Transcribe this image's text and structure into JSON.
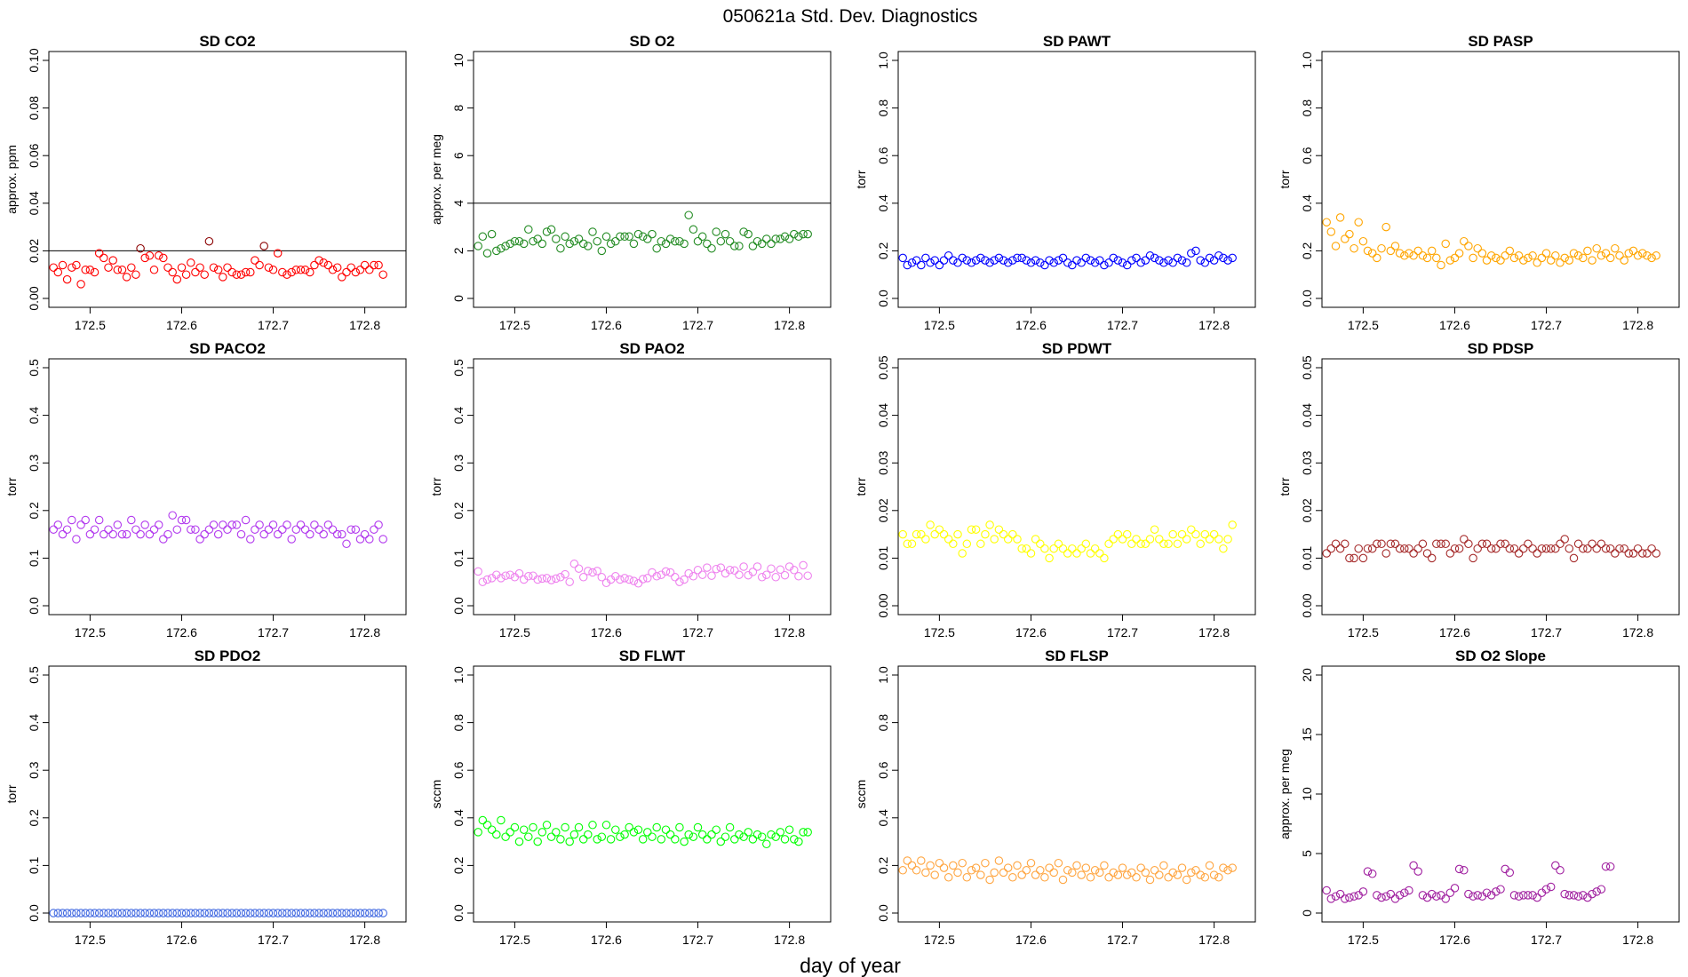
{
  "figure": {
    "title": "050621a   Std. Dev. Diagnostics",
    "xlabel": "day of year"
  },
  "chart_data": [
    {
      "id": "co2",
      "type": "scatter",
      "title": "SD CO2",
      "ylabel": "approx. ppm",
      "xlabel": "",
      "xlim": [
        172.455,
        172.845
      ],
      "ylim": [
        0,
        0.1
      ],
      "yticks": [
        "0.00",
        "0.02",
        "0.04",
        "0.06",
        "0.08",
        "0.10"
      ],
      "xticks": [
        "172.5",
        "172.6",
        "172.7",
        "172.8"
      ],
      "threshold": 0.02,
      "color": "#ff0000",
      "outlier_color": "#8b0000",
      "x_start": 172.46,
      "x_step": 0.005,
      "values": [
        0.013,
        0.011,
        0.014,
        0.008,
        0.013,
        0.014,
        0.006,
        0.012,
        0.012,
        0.011,
        0.019,
        0.017,
        0.013,
        0.016,
        0.012,
        0.012,
        0.009,
        0.013,
        0.01,
        0.021,
        0.017,
        0.018,
        0.012,
        0.018,
        0.017,
        0.013,
        0.011,
        0.008,
        0.013,
        0.01,
        0.015,
        0.011,
        0.013,
        0.01,
        0.024,
        0.013,
        0.012,
        0.009,
        0.013,
        0.011,
        0.01,
        0.01,
        0.011,
        0.011,
        0.016,
        0.014,
        0.022,
        0.013,
        0.012,
        0.019,
        0.011,
        0.01,
        0.011,
        0.012,
        0.012,
        0.012,
        0.011,
        0.014,
        0.016,
        0.015,
        0.014,
        0.012,
        0.013,
        0.009,
        0.011,
        0.013,
        0.011,
        0.012,
        0.014,
        0.012,
        0.014,
        0.014,
        0.01
      ]
    },
    {
      "id": "o2",
      "type": "scatter",
      "title": "SD O2",
      "ylabel": "approx. per meg",
      "xlabel": "",
      "xlim": [
        172.455,
        172.845
      ],
      "ylim": [
        0,
        10
      ],
      "yticks": [
        "0",
        "2",
        "4",
        "6",
        "8",
        "10"
      ],
      "xticks": [
        "172.5",
        "172.6",
        "172.7",
        "172.8"
      ],
      "threshold": 4,
      "color": "#228b22",
      "x_start": 172.46,
      "x_step": 0.005,
      "values": [
        2.2,
        2.6,
        1.9,
        2.7,
        2.0,
        2.1,
        2.2,
        2.3,
        2.4,
        2.4,
        2.3,
        2.9,
        2.4,
        2.5,
        2.3,
        2.8,
        2.9,
        2.5,
        2.1,
        2.6,
        2.3,
        2.4,
        2.5,
        2.3,
        2.2,
        2.8,
        2.4,
        2.0,
        2.6,
        2.3,
        2.4,
        2.6,
        2.6,
        2.6,
        2.3,
        2.7,
        2.6,
        2.5,
        2.7,
        2.1,
        2.4,
        2.3,
        2.5,
        2.4,
        2.4,
        2.3,
        3.5,
        2.9,
        2.4,
        2.6,
        2.3,
        2.1,
        2.8,
        2.4,
        2.7,
        2.4,
        2.2,
        2.2,
        2.8,
        2.7,
        2.2,
        2.4,
        2.3,
        2.5,
        2.3,
        2.5,
        2.5,
        2.6,
        2.5,
        2.7,
        2.6,
        2.7,
        2.7
      ]
    },
    {
      "id": "pawt",
      "type": "scatter",
      "title": "SD PAWT",
      "ylabel": "torr",
      "xlabel": "",
      "xlim": [
        172.455,
        172.845
      ],
      "ylim": [
        0,
        1
      ],
      "yticks": [
        "0.0",
        "0.2",
        "0.4",
        "0.6",
        "0.8",
        "1.0"
      ],
      "xticks": [
        "172.5",
        "172.6",
        "172.7",
        "172.8"
      ],
      "color": "#0000ff",
      "x_start": 172.46,
      "x_step": 0.005,
      "values": [
        0.17,
        0.14,
        0.15,
        0.16,
        0.14,
        0.17,
        0.15,
        0.16,
        0.14,
        0.16,
        0.18,
        0.16,
        0.15,
        0.17,
        0.16,
        0.15,
        0.16,
        0.17,
        0.16,
        0.15,
        0.16,
        0.17,
        0.16,
        0.15,
        0.16,
        0.17,
        0.17,
        0.16,
        0.15,
        0.16,
        0.15,
        0.14,
        0.16,
        0.15,
        0.16,
        0.17,
        0.15,
        0.14,
        0.16,
        0.15,
        0.17,
        0.16,
        0.15,
        0.16,
        0.14,
        0.15,
        0.17,
        0.16,
        0.15,
        0.14,
        0.16,
        0.17,
        0.15,
        0.16,
        0.18,
        0.17,
        0.16,
        0.15,
        0.16,
        0.15,
        0.17,
        0.16,
        0.15,
        0.19,
        0.2,
        0.16,
        0.15,
        0.17,
        0.16,
        0.18,
        0.17,
        0.16,
        0.17
      ]
    },
    {
      "id": "pasp",
      "type": "scatter",
      "title": "SD PASP",
      "ylabel": "torr",
      "xlabel": "",
      "xlim": [
        172.455,
        172.845
      ],
      "ylim": [
        0,
        1
      ],
      "yticks": [
        "0.0",
        "0.2",
        "0.4",
        "0.6",
        "0.8",
        "1.0"
      ],
      "xticks": [
        "172.5",
        "172.6",
        "172.7",
        "172.8"
      ],
      "color": "#ffa500",
      "x_start": 172.46,
      "x_step": 0.005,
      "values": [
        0.32,
        0.28,
        0.22,
        0.34,
        0.25,
        0.27,
        0.21,
        0.32,
        0.24,
        0.2,
        0.19,
        0.17,
        0.21,
        0.3,
        0.2,
        0.22,
        0.19,
        0.18,
        0.19,
        0.18,
        0.2,
        0.18,
        0.17,
        0.2,
        0.17,
        0.14,
        0.23,
        0.16,
        0.17,
        0.19,
        0.24,
        0.22,
        0.17,
        0.21,
        0.19,
        0.16,
        0.18,
        0.17,
        0.16,
        0.18,
        0.2,
        0.17,
        0.18,
        0.16,
        0.17,
        0.18,
        0.15,
        0.17,
        0.19,
        0.16,
        0.18,
        0.15,
        0.17,
        0.16,
        0.19,
        0.18,
        0.17,
        0.2,
        0.16,
        0.21,
        0.18,
        0.19,
        0.17,
        0.21,
        0.18,
        0.16,
        0.19,
        0.2,
        0.18,
        0.19,
        0.18,
        0.17,
        0.18
      ]
    },
    {
      "id": "paco2",
      "type": "scatter",
      "title": "SD PACO2",
      "ylabel": "torr",
      "xlabel": "",
      "xlim": [
        172.455,
        172.845
      ],
      "ylim": [
        0,
        0.5
      ],
      "yticks": [
        "0.0",
        "0.1",
        "0.2",
        "0.3",
        "0.4",
        "0.5"
      ],
      "xticks": [
        "172.5",
        "172.6",
        "172.7",
        "172.8"
      ],
      "color": "#b23aee",
      "x_start": 172.46,
      "x_step": 0.005,
      "values": [
        0.16,
        0.17,
        0.15,
        0.16,
        0.18,
        0.14,
        0.17,
        0.18,
        0.15,
        0.16,
        0.18,
        0.15,
        0.16,
        0.15,
        0.17,
        0.15,
        0.15,
        0.18,
        0.16,
        0.15,
        0.17,
        0.15,
        0.16,
        0.17,
        0.14,
        0.15,
        0.19,
        0.16,
        0.18,
        0.18,
        0.16,
        0.16,
        0.14,
        0.15,
        0.16,
        0.17,
        0.15,
        0.17,
        0.16,
        0.17,
        0.17,
        0.15,
        0.18,
        0.14,
        0.16,
        0.17,
        0.15,
        0.16,
        0.17,
        0.15,
        0.16,
        0.17,
        0.14,
        0.16,
        0.17,
        0.16,
        0.15,
        0.17,
        0.16,
        0.15,
        0.17,
        0.16,
        0.15,
        0.15,
        0.13,
        0.16,
        0.16,
        0.14,
        0.15,
        0.14,
        0.16,
        0.17,
        0.14
      ]
    },
    {
      "id": "pao2",
      "type": "scatter",
      "title": "SD PAO2",
      "ylabel": "torr",
      "xlabel": "",
      "xlim": [
        172.455,
        172.845
      ],
      "ylim": [
        0,
        0.5
      ],
      "yticks": [
        "0.0",
        "0.1",
        "0.2",
        "0.3",
        "0.4",
        "0.5"
      ],
      "xticks": [
        "172.5",
        "172.6",
        "172.7",
        "172.8"
      ],
      "color": "#ee82ee",
      "x_start": 172.46,
      "x_step": 0.005,
      "values": [
        0.072,
        0.05,
        0.055,
        0.058,
        0.065,
        0.058,
        0.063,
        0.065,
        0.06,
        0.068,
        0.055,
        0.062,
        0.063,
        0.055,
        0.057,
        0.058,
        0.054,
        0.057,
        0.06,
        0.066,
        0.05,
        0.088,
        0.078,
        0.06,
        0.073,
        0.07,
        0.073,
        0.06,
        0.048,
        0.055,
        0.062,
        0.055,
        0.058,
        0.055,
        0.052,
        0.047,
        0.056,
        0.058,
        0.07,
        0.062,
        0.065,
        0.072,
        0.07,
        0.06,
        0.05,
        0.055,
        0.068,
        0.062,
        0.075,
        0.065,
        0.08,
        0.063,
        0.077,
        0.08,
        0.068,
        0.075,
        0.074,
        0.065,
        0.082,
        0.064,
        0.071,
        0.082,
        0.06,
        0.065,
        0.078,
        0.06,
        0.076,
        0.064,
        0.082,
        0.075,
        0.062,
        0.085,
        0.063
      ]
    },
    {
      "id": "pdwt",
      "type": "scatter",
      "title": "SD PDWT",
      "ylabel": "torr",
      "xlabel": "",
      "xlim": [
        172.455,
        172.845
      ],
      "ylim": [
        0,
        0.05
      ],
      "yticks": [
        "0.00",
        "0.01",
        "0.02",
        "0.03",
        "0.04",
        "0.05"
      ],
      "xticks": [
        "172.5",
        "172.6",
        "172.7",
        "172.8"
      ],
      "color": "#ffff00",
      "x_start": 172.46,
      "x_step": 0.005,
      "values": [
        0.015,
        0.013,
        0.013,
        0.015,
        0.015,
        0.014,
        0.017,
        0.015,
        0.016,
        0.015,
        0.014,
        0.013,
        0.015,
        0.011,
        0.013,
        0.016,
        0.016,
        0.013,
        0.015,
        0.017,
        0.014,
        0.016,
        0.015,
        0.014,
        0.015,
        0.014,
        0.012,
        0.012,
        0.011,
        0.014,
        0.013,
        0.012,
        0.01,
        0.012,
        0.013,
        0.012,
        0.011,
        0.012,
        0.011,
        0.012,
        0.013,
        0.011,
        0.012,
        0.011,
        0.01,
        0.013,
        0.014,
        0.015,
        0.014,
        0.015,
        0.013,
        0.014,
        0.013,
        0.013,
        0.014,
        0.016,
        0.014,
        0.013,
        0.013,
        0.015,
        0.013,
        0.015,
        0.014,
        0.016,
        0.015,
        0.013,
        0.015,
        0.014,
        0.015,
        0.014,
        0.012,
        0.014,
        0.017
      ]
    },
    {
      "id": "pdsp",
      "type": "scatter",
      "title": "SD PDSP",
      "ylabel": "torr",
      "xlabel": "",
      "xlim": [
        172.455,
        172.845
      ],
      "ylim": [
        0,
        0.05
      ],
      "yticks": [
        "0.00",
        "0.01",
        "0.02",
        "0.03",
        "0.04",
        "0.05"
      ],
      "xticks": [
        "172.5",
        "172.6",
        "172.7",
        "172.8"
      ],
      "color": "#a52a2a",
      "x_start": 172.46,
      "x_step": 0.005,
      "values": [
        0.011,
        0.012,
        0.013,
        0.012,
        0.013,
        0.01,
        0.01,
        0.012,
        0.01,
        0.012,
        0.012,
        0.013,
        0.013,
        0.011,
        0.013,
        0.013,
        0.012,
        0.012,
        0.012,
        0.011,
        0.012,
        0.013,
        0.011,
        0.01,
        0.013,
        0.013,
        0.013,
        0.011,
        0.012,
        0.012,
        0.014,
        0.013,
        0.01,
        0.012,
        0.013,
        0.013,
        0.012,
        0.012,
        0.013,
        0.013,
        0.012,
        0.012,
        0.011,
        0.012,
        0.013,
        0.012,
        0.011,
        0.012,
        0.012,
        0.012,
        0.012,
        0.013,
        0.014,
        0.012,
        0.01,
        0.013,
        0.012,
        0.012,
        0.013,
        0.012,
        0.013,
        0.012,
        0.012,
        0.011,
        0.012,
        0.012,
        0.011,
        0.011,
        0.012,
        0.011,
        0.011,
        0.012,
        0.011
      ]
    },
    {
      "id": "pdo2",
      "type": "scatter",
      "title": "SD PDO2",
      "ylabel": "torr",
      "xlabel": "",
      "xlim": [
        172.455,
        172.845
      ],
      "ylim": [
        0,
        0.5
      ],
      "yticks": [
        "0.0",
        "0.1",
        "0.2",
        "0.3",
        "0.4",
        "0.5"
      ],
      "xticks": [
        "172.5",
        "172.6",
        "172.7",
        "172.8"
      ],
      "color": "#4169e1",
      "x_start": 172.46,
      "x_step": 0.005,
      "values": [
        0,
        0,
        0,
        0,
        0,
        0,
        0,
        0,
        0,
        0,
        0,
        0,
        0,
        0,
        0,
        0,
        0,
        0,
        0,
        0,
        0,
        0,
        0,
        0,
        0,
        0,
        0,
        0,
        0,
        0,
        0,
        0,
        0,
        0,
        0,
        0,
        0,
        0,
        0,
        0,
        0,
        0,
        0,
        0,
        0,
        0,
        0,
        0,
        0,
        0,
        0,
        0,
        0,
        0,
        0,
        0,
        0,
        0,
        0,
        0,
        0,
        0,
        0,
        0,
        0,
        0,
        0,
        0,
        0,
        0,
        0,
        0,
        0
      ]
    },
    {
      "id": "flwt",
      "type": "scatter",
      "title": "SD FLWT",
      "ylabel": "sccm",
      "xlabel": "",
      "xlim": [
        172.455,
        172.845
      ],
      "ylim": [
        0,
        1
      ],
      "yticks": [
        "0.0",
        "0.2",
        "0.4",
        "0.6",
        "0.8",
        "1.0"
      ],
      "xticks": [
        "172.5",
        "172.6",
        "172.7",
        "172.8"
      ],
      "color": "#00ff00",
      "x_start": 172.46,
      "x_step": 0.005,
      "values": [
        0.34,
        0.39,
        0.37,
        0.35,
        0.33,
        0.39,
        0.32,
        0.34,
        0.36,
        0.3,
        0.35,
        0.32,
        0.36,
        0.3,
        0.34,
        0.37,
        0.32,
        0.34,
        0.31,
        0.36,
        0.3,
        0.33,
        0.36,
        0.31,
        0.33,
        0.37,
        0.31,
        0.32,
        0.37,
        0.31,
        0.35,
        0.32,
        0.33,
        0.36,
        0.34,
        0.35,
        0.31,
        0.34,
        0.32,
        0.36,
        0.31,
        0.35,
        0.33,
        0.31,
        0.36,
        0.3,
        0.33,
        0.32,
        0.36,
        0.33,
        0.31,
        0.33,
        0.35,
        0.3,
        0.32,
        0.36,
        0.31,
        0.33,
        0.32,
        0.34,
        0.31,
        0.33,
        0.32,
        0.29,
        0.33,
        0.32,
        0.34,
        0.31,
        0.35,
        0.31,
        0.3,
        0.34,
        0.34
      ]
    },
    {
      "id": "flsp",
      "type": "scatter",
      "title": "SD FLSP",
      "ylabel": "sccm",
      "xlabel": "",
      "xlim": [
        172.455,
        172.845
      ],
      "ylim": [
        0,
        1
      ],
      "yticks": [
        "0.0",
        "0.2",
        "0.4",
        "0.6",
        "0.8",
        "1.0"
      ],
      "xticks": [
        "172.5",
        "172.6",
        "172.7",
        "172.8"
      ],
      "color": "#ffa540",
      "x_start": 172.46,
      "x_step": 0.005,
      "values": [
        0.18,
        0.22,
        0.2,
        0.18,
        0.22,
        0.17,
        0.2,
        0.16,
        0.21,
        0.19,
        0.15,
        0.2,
        0.17,
        0.21,
        0.15,
        0.18,
        0.19,
        0.16,
        0.21,
        0.14,
        0.17,
        0.22,
        0.17,
        0.19,
        0.15,
        0.2,
        0.16,
        0.18,
        0.21,
        0.16,
        0.18,
        0.15,
        0.19,
        0.17,
        0.21,
        0.14,
        0.18,
        0.17,
        0.2,
        0.16,
        0.19,
        0.15,
        0.18,
        0.17,
        0.2,
        0.15,
        0.17,
        0.16,
        0.19,
        0.16,
        0.17,
        0.15,
        0.19,
        0.17,
        0.14,
        0.18,
        0.16,
        0.2,
        0.15,
        0.17,
        0.16,
        0.19,
        0.14,
        0.17,
        0.18,
        0.16,
        0.15,
        0.2,
        0.16,
        0.15,
        0.19,
        0.18,
        0.19
      ]
    },
    {
      "id": "o2slope",
      "type": "scatter",
      "title": "SD O2 Slope",
      "ylabel": "approx. per meg",
      "xlabel": "",
      "xlim": [
        172.455,
        172.845
      ],
      "ylim": [
        0,
        20
      ],
      "yticks": [
        "0",
        "5",
        "10",
        "15",
        "20"
      ],
      "xticks": [
        "172.5",
        "172.6",
        "172.7",
        "172.8"
      ],
      "color": "#a020a0",
      "x_start": 172.46,
      "x_step": 0.005,
      "values": [
        1.9,
        1.2,
        1.4,
        1.6,
        1.2,
        1.3,
        1.4,
        1.5,
        1.8,
        3.5,
        3.3,
        1.5,
        1.3,
        1.4,
        1.6,
        1.2,
        1.5,
        1.7,
        1.9,
        4.0,
        3.5,
        1.5,
        1.3,
        1.6,
        1.4,
        1.5,
        1.2,
        1.7,
        2.1,
        3.7,
        3.6,
        1.6,
        1.4,
        1.5,
        1.4,
        1.7,
        1.5,
        1.8,
        2.0,
        3.7,
        3.4,
        1.5,
        1.4,
        1.5,
        1.5,
        1.5,
        1.3,
        1.7,
        2.0,
        2.2,
        4.0,
        3.6,
        1.6,
        1.5,
        1.5,
        1.4,
        1.5,
        1.3,
        1.6,
        1.8,
        2.0,
        3.9,
        3.9
      ]
    }
  ]
}
